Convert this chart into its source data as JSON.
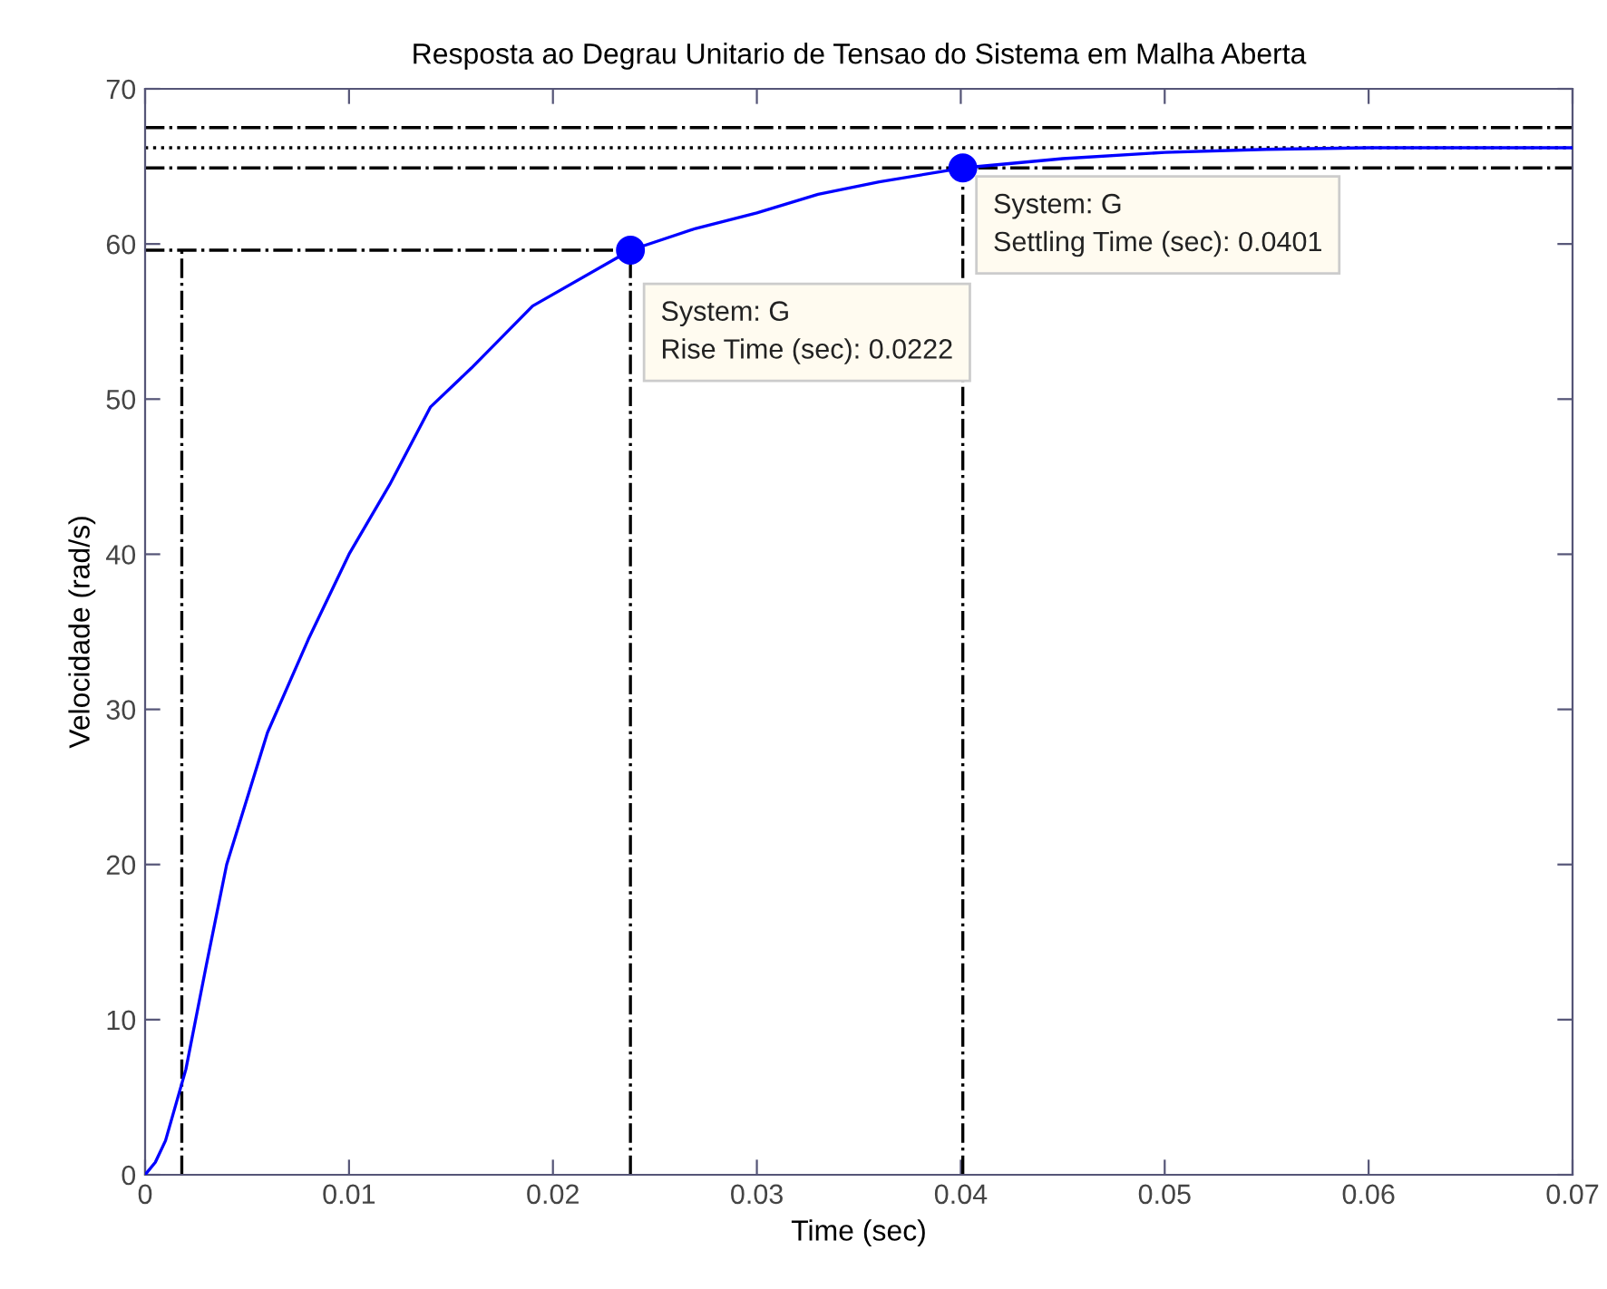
{
  "chart_data": {
    "type": "line",
    "title": "Resposta ao Degrau Unitario de Tensao do Sistema em Malha Aberta",
    "xlabel": "Time (sec)",
    "ylabel": "Velocidade (rad/s)",
    "xlim": [
      0,
      0.07
    ],
    "ylim": [
      0,
      70
    ],
    "xticks": [
      0,
      0.01,
      0.02,
      0.03,
      0.04,
      0.05,
      0.06,
      0.07
    ],
    "yticks": [
      0,
      10,
      20,
      30,
      40,
      50,
      60,
      70
    ],
    "grid": false,
    "series": [
      {
        "color": "#0000ff",
        "x": [
          0,
          0.0005,
          0.001,
          0.002,
          0.003,
          0.004,
          0.006,
          0.008,
          0.01,
          0.012,
          0.014,
          0.016,
          0.019,
          0.0238,
          0.027,
          0.03,
          0.033,
          0.036,
          0.0401,
          0.045,
          0.05,
          0.055,
          0.06,
          0.07
        ],
        "values": [
          0,
          0.8,
          2.2,
          6.8,
          13.5,
          20,
          28.5,
          34.5,
          40,
          44.5,
          49.5,
          52,
          56,
          59.6,
          61,
          62,
          63.2,
          64,
          64.9,
          65.5,
          65.9,
          66.1,
          66.2,
          66.2
        ]
      },
      {
        "color": "#000000",
        "line_style": "dashdot",
        "x": [
          0,
          0.0238
        ],
        "values": [
          59.6,
          59.6
        ]
      },
      {
        "color": "#000000",
        "line_style": "dashdot",
        "x": [
          0.0018,
          0.0018
        ],
        "values": [
          0,
          59.6
        ]
      },
      {
        "color": "#000000",
        "line_style": "dashdot",
        "x": [
          0.0238,
          0.0238
        ],
        "values": [
          0,
          59.6
        ]
      },
      {
        "color": "#000000",
        "line_style": "dashdot",
        "x": [
          0.0401,
          0.0401
        ],
        "values": [
          0,
          64.9
        ]
      },
      {
        "type": "scatter",
        "color": "#0000ff",
        "marker": "circle",
        "x": [
          0.0238,
          0.0401
        ],
        "values": [
          59.6,
          64.9
        ]
      }
    ],
    "ref_lines": [
      {
        "axis": "y",
        "value": 67.5,
        "color": "#000000",
        "line_style": "dashdot"
      },
      {
        "axis": "y",
        "value": 66.2,
        "color": "#000000",
        "line_style": "dotted"
      },
      {
        "axis": "y",
        "value": 64.9,
        "color": "#000000",
        "line_style": "dashdot"
      }
    ],
    "annotations": [
      {
        "text": "System: G\nRise Time (sec): 0.0222",
        "x": 0.0238,
        "y": 59.6
      },
      {
        "text": "System: G\nSettling Time (sec): 0.0401",
        "x": 0.0401,
        "y": 64.9
      }
    ]
  }
}
